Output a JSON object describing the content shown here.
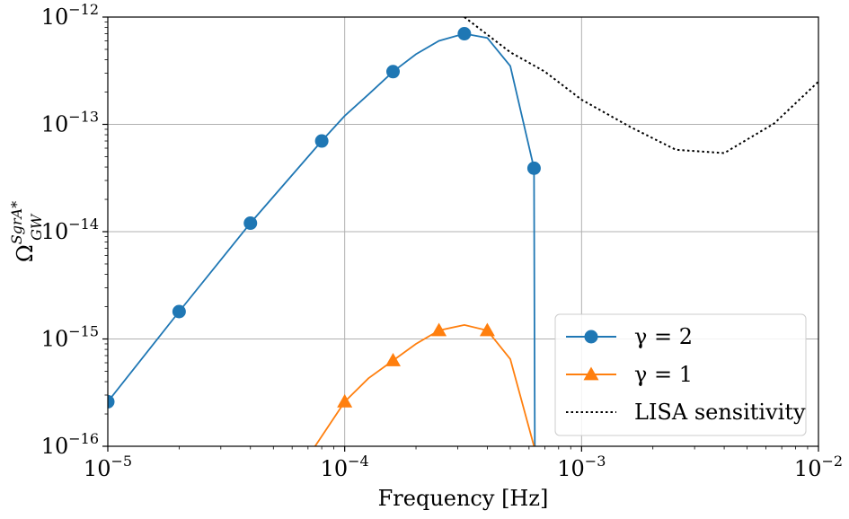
{
  "chart_data": {
    "type": "line",
    "title": "",
    "xlabel": "Frequency [Hz]",
    "ylabel": "Ω_GW^{SgrA*}",
    "xscale": "log",
    "yscale": "log",
    "xlim": [
      1e-05,
      0.01
    ],
    "ylim": [
      1e-16,
      1e-12
    ],
    "grid": true,
    "legend_position": "bottom-right",
    "x_tick_labels": [
      {
        "value": 1e-05,
        "base": "10",
        "exp": "−5"
      },
      {
        "value": 0.0001,
        "base": "10",
        "exp": "−4"
      },
      {
        "value": 0.001,
        "base": "10",
        "exp": "−3"
      },
      {
        "value": 0.01,
        "base": "10",
        "exp": "−2"
      }
    ],
    "y_tick_labels": [
      {
        "value": 1e-16,
        "base": "10",
        "exp": "−16"
      },
      {
        "value": 1e-15,
        "base": "10",
        "exp": "−15"
      },
      {
        "value": 1e-14,
        "base": "10",
        "exp": "−14"
      },
      {
        "value": 1e-13,
        "base": "10",
        "exp": "−13"
      },
      {
        "value": 1e-12,
        "base": "10",
        "exp": "−12"
      }
    ],
    "series": [
      {
        "name": "γ = 2",
        "color": "#1f77b4",
        "marker": "circle",
        "line": [
          [
            1e-05,
            2.6e-16
          ],
          [
            2e-05,
            1.8e-15
          ],
          [
            4e-05,
            1.2e-14
          ],
          [
            8e-05,
            7e-14
          ],
          [
            0.0001,
            1.2e-13
          ],
          [
            0.000126,
            1.9e-13
          ],
          [
            0.00016,
            3.1e-13
          ],
          [
            0.0002,
            4.5e-13
          ],
          [
            0.00025,
            6e-13
          ],
          [
            0.00032,
            7e-13
          ],
          [
            0.0004,
            6.4e-13
          ],
          [
            0.0005,
            3.5e-13
          ],
          [
            0.00063,
            3.9e-14
          ],
          [
            0.000635,
            1e-16
          ]
        ],
        "markers": [
          [
            1e-05,
            2.6e-16
          ],
          [
            2e-05,
            1.8e-15
          ],
          [
            4e-05,
            1.2e-14
          ],
          [
            8e-05,
            7e-14
          ],
          [
            0.00016,
            3.1e-13
          ],
          [
            0.00032,
            7e-13
          ],
          [
            0.00063,
            3.9e-14
          ]
        ]
      },
      {
        "name": "γ = 1",
        "color": "#ff7f0e",
        "marker": "triangle",
        "line": [
          [
            7.5e-05,
            1e-16
          ],
          [
            0.0001,
            2.6e-16
          ],
          [
            0.000126,
            4.3e-16
          ],
          [
            0.00016,
            6.3e-16
          ],
          [
            0.0002,
            9e-16
          ],
          [
            0.00025,
            1.2e-15
          ],
          [
            0.00032,
            1.35e-15
          ],
          [
            0.0004,
            1.2e-15
          ],
          [
            0.0005,
            6.5e-16
          ],
          [
            0.00063,
            1e-16
          ]
        ],
        "markers": [
          [
            0.0001,
            2.6e-16
          ],
          [
            0.00016,
            6.3e-16
          ],
          [
            0.00025,
            1.2e-15
          ],
          [
            0.0004,
            1.2e-15
          ]
        ]
      },
      {
        "name": "LISA sensitivity",
        "color": "#000000",
        "marker": "none",
        "dash": "dotted",
        "line": [
          [
            0.00032,
            1e-12
          ],
          [
            0.0005,
            4.7e-13
          ],
          [
            0.0007,
            3.1e-13
          ],
          [
            0.001,
            1.7e-13
          ],
          [
            0.0016,
            9.5e-14
          ],
          [
            0.0025,
            5.8e-14
          ],
          [
            0.004,
            5.4e-14
          ],
          [
            0.0065,
            1.02e-13
          ],
          [
            0.01,
            2.5e-13
          ]
        ]
      }
    ]
  }
}
